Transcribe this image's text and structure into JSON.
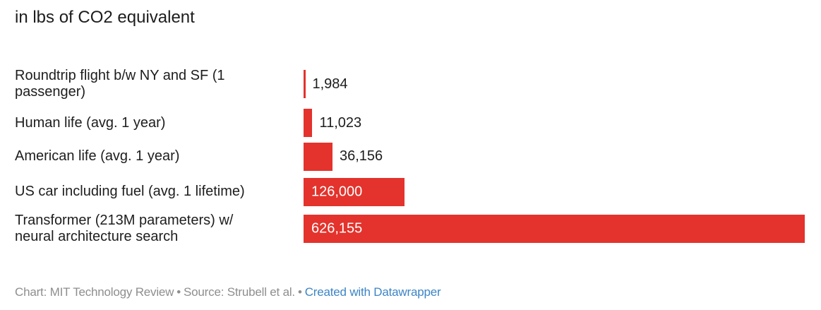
{
  "title": "in lbs of CO2 equivalent",
  "chart_data": {
    "type": "bar",
    "orientation": "horizontal",
    "title": "in lbs of CO2 equivalent",
    "categories": [
      "Roundtrip flight b/w NY and SF (1 passenger)",
      "Human life (avg. 1 year)",
      "American life (avg. 1 year)",
      "US car including fuel (avg. 1 lifetime)",
      "Transformer (213M parameters) w/ neural architecture search"
    ],
    "categories_display": [
      "Roundtrip flight b/w NY and SF (1\npassenger)",
      "Human life (avg. 1 year)",
      "American life (avg. 1 year)",
      "US car including fuel (avg. 1 lifetime)",
      "Transformer (213M parameters) w/\nneural architecture search"
    ],
    "values": [
      1984,
      11023,
      36156,
      126000,
      626155
    ],
    "value_labels": [
      "1,984",
      "11,023",
      "36,156",
      "126,000",
      "626,155"
    ],
    "xlim": [
      0,
      626155
    ],
    "grid": false,
    "legend": false,
    "bar_color": "#e3332c",
    "value_label_inside_color": "#ffffff",
    "value_label_outside_color": "#1d1d1d"
  },
  "footer": {
    "chart_credit": "Chart: MIT Technology Review",
    "separator": "•",
    "source_credit": "Source: Strubell et al.",
    "datawrapper_link": "Created with Datawrapper"
  },
  "colors": {
    "bar": "#e3332c",
    "text": "#1d1d1d",
    "footer_text": "#8e8e8e",
    "link": "#3c85c6",
    "background": "#ffffff"
  }
}
